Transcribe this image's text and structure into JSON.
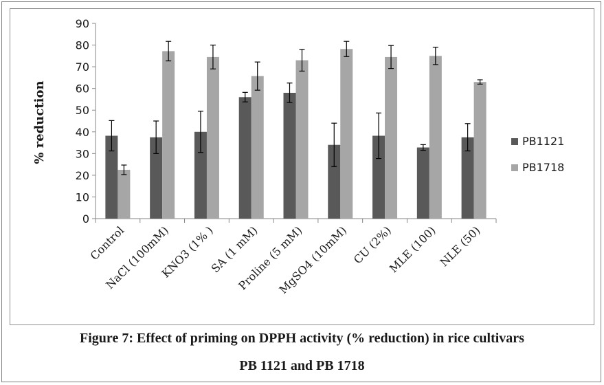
{
  "chart_data": {
    "type": "bar",
    "title": "",
    "xlabel": "",
    "ylabel": "% reduction",
    "ylim": [
      0,
      90
    ],
    "yticks": [
      0,
      10,
      20,
      30,
      40,
      50,
      60,
      70,
      80,
      90
    ],
    "categories": [
      "Control",
      "NaCl (100mM)",
      "KNO3 (1% )",
      "SA (1 mM)",
      "Proline (5 mM)",
      "MgSO4 (10mM)",
      "CU (2%)",
      "MLE (100)",
      "NLE (50)"
    ],
    "series": [
      {
        "name": "PB1121",
        "color": "#595959",
        "values": [
          38.2,
          37.5,
          40.0,
          56.0,
          58.0,
          34.0,
          38.2,
          32.8,
          37.5
        ],
        "errors": [
          7.0,
          7.5,
          9.5,
          2.2,
          4.5,
          10.0,
          10.5,
          1.3,
          6.3
        ]
      },
      {
        "name": "PB1718",
        "color": "#a6a6a6",
        "values": [
          22.5,
          77.2,
          74.5,
          65.7,
          73.0,
          78.2,
          74.5,
          75.0,
          63.0
        ],
        "errors": [
          2.2,
          4.5,
          5.5,
          6.5,
          5.0,
          3.5,
          5.3,
          4.0,
          1.0
        ]
      }
    ],
    "grid": false,
    "legend": "right"
  },
  "caption": {
    "line1": "Figure 7: Effect of priming on DPPH activity (% reduction) in rice cultivars",
    "line2": "PB 1121 and PB 1718"
  }
}
